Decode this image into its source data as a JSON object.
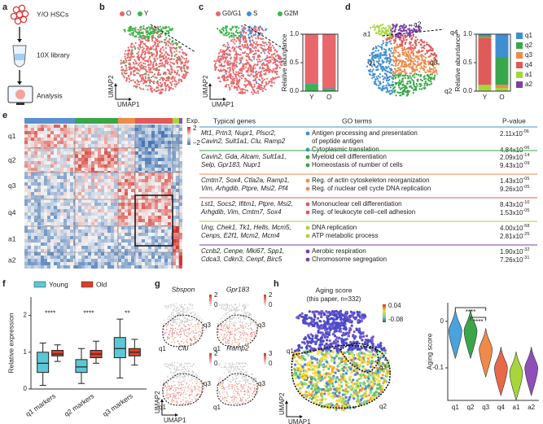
{
  "panels": [
    "a",
    "b",
    "c",
    "d",
    "e",
    "f",
    "g",
    "h"
  ],
  "a": {
    "steps": [
      "Y/O HSCs",
      "10X library",
      "Analysis"
    ]
  },
  "b": {
    "legend": [
      "O",
      "Y"
    ],
    "xlabel": "UMAP1",
    "ylabel": "UMAP2"
  },
  "c": {
    "xlabel": "UMAP1",
    "ylabel": "UMAP2"
  },
  "d": {
    "clusters": [
      "a1",
      "a2",
      "q4",
      "q1",
      "q3",
      "q2"
    ]
  },
  "e": {
    "rows": [
      "q1",
      "q2",
      "q3",
      "q4",
      "a1",
      "a2"
    ],
    "colorbar": {
      "title": "Exp.",
      "max": "2",
      "min": "–2"
    },
    "headers": [
      "Typical genes",
      "GO terms",
      "P-value"
    ],
    "table": [
      {
        "genes": [
          "Mt1, Prtn3, Nupr1, Plscr2,",
          "Cavin2, Sult1a1, Clu, Ramp2"
        ],
        "terms": [
          {
            "text": [
              "Antigen processing and presentation",
              "of peptide antigen"
            ],
            "p": "2.11x10",
            "exp": "-06"
          },
          {
            "text": [
              "Cytoplasmic translation"
            ],
            "p": "4.84x10",
            "exp": "-06"
          }
        ]
      },
      {
        "genes": [
          "Cavin2, Gda, Alcam, Sult1a1,",
          "Selp, Gpr183, Nupr1"
        ],
        "terms": [
          {
            "text": [
              "Myeloid cell differentiation"
            ],
            "p": "2.09x10",
            "exp": "-14"
          },
          {
            "text": [
              "Homeostasis of number of cells"
            ],
            "p": "9.43x10",
            "exp": "-09"
          }
        ]
      },
      {
        "genes": [
          "Cmtm7, Sox4, Ctla2a, Ramp1,",
          "Vim, Arhgdib, Ptpre, Msi2, Pf4"
        ],
        "terms": [
          {
            "text": [
              "Reg. of actin cytoskeleton reorganization"
            ],
            "p": "1.43x10",
            "exp": "-05"
          },
          {
            "text": [
              "Reg. of nuclear cell cycle DNA replication"
            ],
            "p": "9.26x10",
            "exp": "-05"
          }
        ]
      },
      {
        "genes": [
          "Lst1, Socs2, Ifitm1, Ptpre, Msi2,",
          "Arhgdib, Vim, Cmtm7, Sox4"
        ],
        "terms": [
          {
            "text": [
              "Mononuclear cell differentiation"
            ],
            "p": "8.43x10",
            "exp": "-10"
          },
          {
            "text": [
              "Reg. of leukocyte cell–cell adhesion"
            ],
            "p": "1.53x10",
            "exp": "-05"
          }
        ]
      },
      {
        "genes": [
          "Ung, Chek1, Tk1, Hells, Mcm5,",
          "Cenps, E2f1, Mcm2, Mcm4"
        ],
        "terms": [
          {
            "text": [
              "DNA replication"
            ],
            "p": "4.00x10",
            "exp": "-58"
          },
          {
            "text": [
              "ATP metabolic process"
            ],
            "p": "2.81x10",
            "exp": "-25"
          }
        ]
      },
      {
        "genes": [
          "Ccnb2, Cenpe, Mki67, Spp1,",
          "Cdca3, Cdkn3, Cenpf, Birc5"
        ],
        "terms": [
          {
            "text": [
              "Aerobic respiration"
            ],
            "p": "1.90x10",
            "exp": "-32"
          },
          {
            "text": [
              "Chromosome segregation"
            ],
            "p": "7.26x10",
            "exp": "-31"
          }
        ]
      }
    ]
  },
  "g": {
    "genes": [
      "Sbspon",
      "Gpr183",
      "Clu",
      "Ramp2"
    ],
    "scale_max": [
      "2",
      "2",
      "2",
      "3"
    ],
    "scale_min": [
      "0",
      "0",
      "0",
      "0"
    ],
    "clusters": [
      "q1",
      "q3"
    ],
    "xlabel": "UMAP1",
    "ylabel": "UMAP2"
  },
  "h": {
    "title": "Aging score",
    "subtitle": "(this paper, n=332)",
    "scale_max": "0.04",
    "scale_min": "-0.08",
    "clusters": [
      "q1",
      "q3",
      "q2"
    ],
    "xlabel": "UMAP1",
    "ylabel": "UMAP2"
  },
  "chart_data": [
    {
      "type": "stacked-bar",
      "ylabel": "Relative abundance",
      "categories": [
        "Y",
        "O"
      ],
      "series": [
        {
          "name": "G0/G1",
          "color": "#e8676a",
          "values": [
            0.86,
            0.95
          ]
        },
        {
          "name": "S",
          "color": "#3e8fd8",
          "values": [
            0.02,
            0.01
          ]
        },
        {
          "name": "G2M",
          "color": "#3cb44b",
          "values": [
            0.12,
            0.04
          ]
        }
      ],
      "ylim": [
        0,
        1
      ],
      "yticks": [
        {
          "value": 0,
          "label": "0.0"
        },
        0.5,
        {
          "value": 1,
          "label": "1.0"
        }
      ]
    },
    {
      "type": "stacked-bar",
      "ylabel": "Relative abundance",
      "categories": [
        "Y",
        "O"
      ],
      "series": [
        {
          "name": "q1",
          "color": "#3f8fd0",
          "values": [
            0.03,
            0.4
          ]
        },
        {
          "name": "q2",
          "color": "#3aa64a",
          "values": [
            0.02,
            0.49
          ]
        },
        {
          "name": "q3",
          "color": "#f08a4b",
          "values": [
            0.01,
            0.04
          ]
        },
        {
          "name": "q4",
          "color": "#e05a5a",
          "values": [
            0.83,
            0.01
          ]
        },
        {
          "name": "a1",
          "color": "#a6d63c",
          "values": [
            0.1,
            0.05
          ]
        },
        {
          "name": "a2",
          "color": "#7b3fa6",
          "values": [
            0.01,
            0.01
          ]
        }
      ],
      "ylim": [
        0,
        1
      ],
      "yticks": [
        {
          "value": 0,
          "label": "0.0"
        },
        0.5,
        {
          "value": 1,
          "label": "1.0"
        }
      ]
    },
    {
      "type": "box",
      "ylabel": "Relative expression",
      "categories": [
        "q1 markers",
        "q2 markers",
        "q3 markers"
      ],
      "series": [
        {
          "name": "Young",
          "color": "#5bc8d6",
          "values": [
            [
              0.1,
              0.45,
              0.7,
              1.0,
              1.25
            ],
            [
              0.15,
              0.45,
              0.6,
              0.8,
              1.1
            ],
            [
              0.3,
              0.85,
              1.1,
              1.4,
              1.9
            ]
          ]
        },
        {
          "name": "Old",
          "color": "#d9402b",
          "values": [
            [
              0.75,
              0.9,
              0.95,
              1.05,
              1.2
            ],
            [
              0.7,
              0.85,
              0.95,
              1.05,
              1.3
            ],
            [
              0.65,
              0.9,
              1.0,
              1.1,
              1.35
            ]
          ]
        }
      ],
      "annotations": [
        "****",
        "****",
        "**"
      ],
      "ylim": [
        0,
        2.5
      ],
      "yticks": [
        0,
        1,
        2
      ]
    },
    {
      "type": "violin",
      "ylabel": "Aging score",
      "categories": [
        "q1",
        "q2",
        "q3",
        "q4",
        "a1",
        "a2"
      ],
      "colors": [
        "#4aa3df",
        "#3aa64a",
        "#f08a4b",
        "#e8684a",
        "#a6d63c",
        "#8e4fb8"
      ],
      "values": [
        -0.02,
        -0.02,
        -0.06,
        -0.1,
        -0.11,
        -0.1
      ],
      "annotations": [
        "****",
        "****"
      ],
      "ylim": [
        -0.17,
        0.04
      ],
      "yticks": [
        0,
        -0.1
      ]
    }
  ]
}
